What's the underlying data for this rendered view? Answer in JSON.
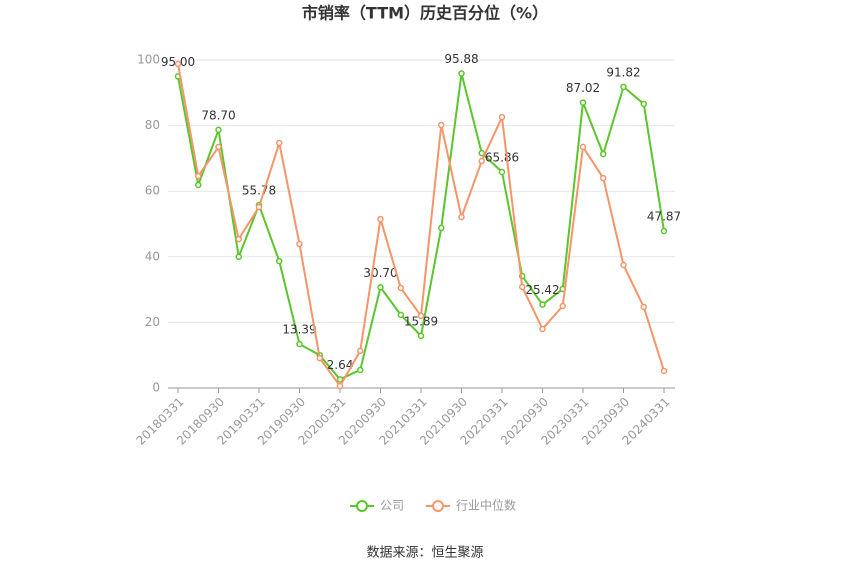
{
  "chart_data": {
    "type": "line",
    "title": "市销率（TTM）历史百分位（%）",
    "categories": [
      "20180331",
      null,
      "20180930",
      null,
      "20190331",
      null,
      "20190930",
      null,
      "20200331",
      null,
      "20200930",
      null,
      "20210331",
      null,
      "20210930",
      null,
      "20220331",
      null,
      "20220930",
      null,
      "20230331",
      null,
      "20230930",
      null,
      "20240331"
    ],
    "series": [
      {
        "name": "公司",
        "color": "#5ac62b",
        "values": [
          95.0,
          61.9,
          78.7,
          40.0,
          55.78,
          38.7,
          13.39,
          10.0,
          2.64,
          5.5,
          30.7,
          22.3,
          15.89,
          48.8,
          95.88,
          71.6,
          65.86,
          34.1,
          25.42,
          30.2,
          87.02,
          71.3,
          91.82,
          86.6,
          47.87
        ],
        "value_labels": [
          "95.00",
          null,
          "78.70",
          null,
          "55.78",
          null,
          "13.39",
          null,
          "2.64",
          null,
          "30.70",
          null,
          "15.89",
          null,
          "95.88",
          null,
          "65.86",
          null,
          "25.42",
          null,
          "87.02",
          null,
          "91.82",
          null,
          "47.87"
        ]
      },
      {
        "name": "行业中位数",
        "color": "#f4956a",
        "values": [
          98.8,
          64.6,
          73.5,
          45.4,
          55.2,
          74.7,
          43.9,
          9.1,
          0.6,
          11.3,
          51.5,
          30.5,
          22.0,
          80.2,
          52.1,
          69.2,
          82.6,
          30.8,
          18.0,
          25.0,
          73.5,
          64.0,
          37.5,
          24.7,
          5.2
        ]
      }
    ],
    "ylim": [
      0,
      100
    ],
    "yticks": [
      0,
      20,
      40,
      60,
      80,
      100
    ],
    "grid": true,
    "legend": "bottom"
  },
  "source": "数据来源：恒生聚源"
}
